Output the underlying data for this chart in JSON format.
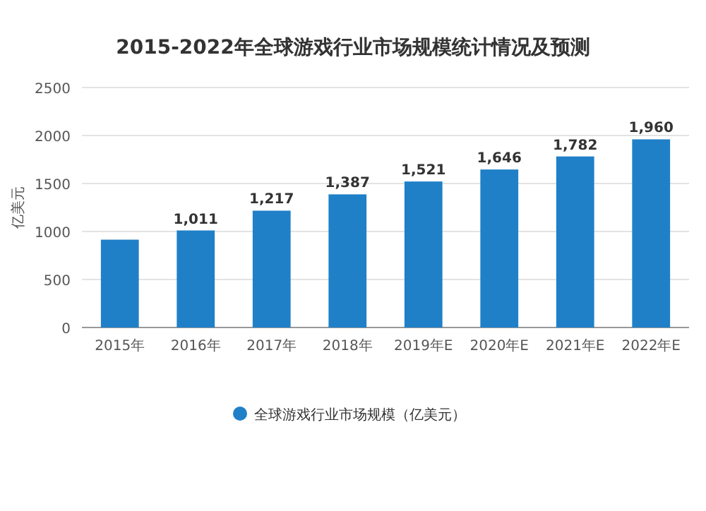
{
  "chart_data": {
    "type": "bar",
    "title": "2015-2022年全球游戏行业市场规模统计情况及预测",
    "ylabel": "亿美元",
    "categories": [
      "2015年",
      "2016年",
      "2017年",
      "2018年",
      "2019年E",
      "2020年E",
      "2021年E",
      "2022年E"
    ],
    "series": [
      {
        "name": "全球游戏行业市场规模（亿美元）",
        "color": "#1f80c8",
        "values": [
          915,
          1011,
          1217,
          1387,
          1521,
          1646,
          1782,
          1960
        ],
        "value_labels": [
          null,
          "1,011",
          "1,217",
          "1,387",
          "1,521",
          "1,646",
          "1,782",
          "1,960"
        ]
      }
    ],
    "ylim": [
      0,
      2500
    ],
    "yticks": [
      0,
      500,
      1000,
      1500,
      2000,
      2500
    ],
    "grid": "y",
    "legend": "bottom"
  }
}
